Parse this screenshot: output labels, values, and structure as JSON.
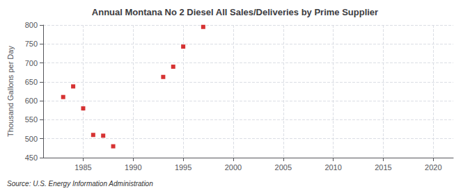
{
  "chart_data": {
    "type": "scatter",
    "title": "Annual Montana No 2 Diesel All Sales/Deliveries by Prime Supplier",
    "ylabel": "Thousand Gallons per Day",
    "source": "Source: U.S. Energy Information Administration",
    "x": [
      1983,
      1984,
      1985,
      1986,
      1987,
      1988,
      1993,
      1994,
      1995,
      1997
    ],
    "values": [
      610,
      638,
      580,
      510,
      508,
      480,
      663,
      690,
      743,
      795
    ],
    "color": "#cc0000",
    "marker": "square",
    "xlim": [
      1981,
      2022
    ],
    "xticks": [
      1985,
      1990,
      1995,
      2000,
      2005,
      2010,
      2015,
      2020
    ],
    "ylim": [
      450,
      800
    ],
    "yticks": [
      450,
      500,
      550,
      600,
      650,
      700,
      750,
      800
    ],
    "grid": true
  }
}
